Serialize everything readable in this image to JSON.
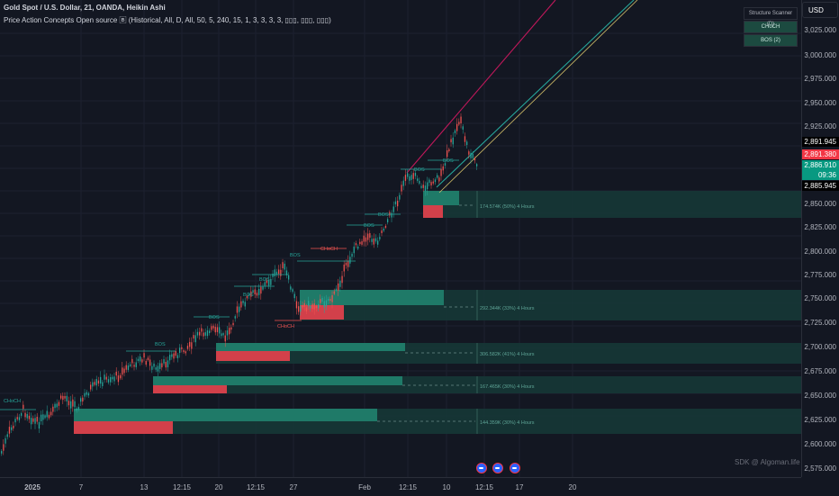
{
  "legend": {
    "title": "Gold Spot / U.S. Dollar, 21, OANDA, Heikin Ashi",
    "indicator": "Price Action Concepts Open source 🄱 (Historical, All, D, All, 50, 5, 240, 15, 1, 3, 3, 3, 3, ▯▯▯, ▯▯▯, ▯▯▯)"
  },
  "currency_button": "USD",
  "scanner": {
    "title": "Structure Scanner (D)",
    "rows": [
      "CHoCH",
      "BOS (2)"
    ]
  },
  "price_axis": {
    "ticks": [
      "3,025.000",
      "3,000.000",
      "2,975.000",
      "2,950.000",
      "2,925.000",
      "2,850.000",
      "2,825.000",
      "2,800.000",
      "2,775.000",
      "2,750.000",
      "2,725.000",
      "2,700.000",
      "2,675.000",
      "2,650.000",
      "2,625.000",
      "2,600.000",
      "2,575.000"
    ],
    "badges": [
      {
        "text": "2,891.945",
        "bg": "#000000",
        "fg": "#ffffff"
      },
      {
        "text": "2,891.380",
        "bg": "#f23645",
        "fg": "#ffffff"
      },
      {
        "text": "2,886.910",
        "bg": "#089981",
        "fg": "#ffffff"
      },
      {
        "text": "09:36",
        "bg": "#089981",
        "fg": "#ffffff"
      },
      {
        "text": "2,885.945",
        "bg": "#000000",
        "fg": "#ffffff"
      }
    ]
  },
  "time_axis": [
    "2025",
    "7",
    "13",
    "12:15",
    "20",
    "12:15",
    "27",
    "Feb",
    "12:15",
    "10",
    "12:15",
    "17",
    "20"
  ],
  "structure_labels": [
    "CHoCH",
    "BOS",
    "BOS",
    "BOS",
    "BOS",
    "CHoCH",
    "BOS",
    "BOS",
    "CHoCH",
    "BOS",
    "BOS",
    "BOS"
  ],
  "volume_profile_labels": [
    "174.574K (50%) 4 Hours",
    "292.344K (33%) 4 Hours",
    "306.582K (41%) 4 Hours",
    "167.465K (30%) 4 Hours",
    "144.359K (30%) 4 Hours"
  ],
  "watermark": "SDK @ Algoman.life",
  "colors": {
    "background": "#131722",
    "bull": "#26a69a",
    "bear": "#ef5350",
    "zone_green": "#1f7a68",
    "zone_red": "#d2404a",
    "zone_faint": "#163a37"
  }
}
